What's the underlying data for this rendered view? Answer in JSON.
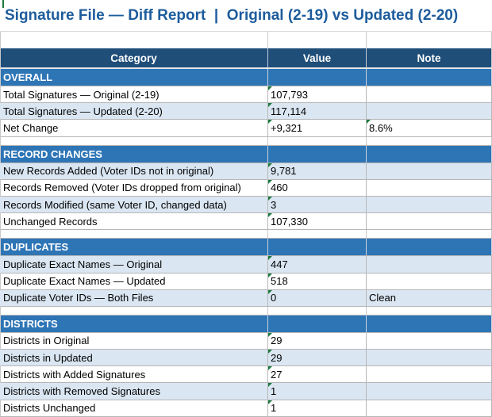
{
  "title": "Signature File — Diff Report  |  Original (2-19) vs Updated (2-20)",
  "columns": [
    "Category",
    "Value",
    "Note"
  ],
  "colors": {
    "title_text": "#1D5C9C",
    "header_bg": "#1F4E79",
    "section_bg": "#2E75B6",
    "band_bg": "#DAE6F2",
    "grid": "#B7B7B7",
    "flag_green": "#1B7A3E"
  },
  "sections": [
    {
      "name": "OVERALL",
      "rows": [
        {
          "category": "Total Signatures — Original (2-19)",
          "value": "107,793",
          "value_flag": true,
          "note": "",
          "note_flag": false
        },
        {
          "category": "Total Signatures — Updated (2-20)",
          "value": "117,114",
          "value_flag": true,
          "note": "",
          "note_flag": false
        },
        {
          "category": "Net Change",
          "value": "+9,321",
          "value_flag": true,
          "note": "8.6%",
          "note_flag": true
        }
      ]
    },
    {
      "name": "RECORD CHANGES",
      "rows": [
        {
          "category": "New Records Added (Voter IDs not in original)",
          "value": "9,781",
          "value_flag": true,
          "note": "",
          "note_flag": false
        },
        {
          "category": "Records Removed (Voter IDs dropped from original)",
          "value": "460",
          "value_flag": true,
          "note": "",
          "note_flag": false
        },
        {
          "category": "Records Modified (same Voter ID, changed data)",
          "value": "3",
          "value_flag": true,
          "note": "",
          "note_flag": false
        },
        {
          "category": "Unchanged Records",
          "value": "107,330",
          "value_flag": true,
          "note": "",
          "note_flag": false
        }
      ]
    },
    {
      "name": "DUPLICATES",
      "rows": [
        {
          "category": "Duplicate Exact Names — Original",
          "value": "447",
          "value_flag": true,
          "note": "",
          "note_flag": false
        },
        {
          "category": "Duplicate Exact Names — Updated",
          "value": "518",
          "value_flag": true,
          "note": "",
          "note_flag": false
        },
        {
          "category": "Duplicate Voter IDs — Both Files",
          "value": "0",
          "value_flag": true,
          "note": "Clean",
          "note_flag": false
        }
      ]
    },
    {
      "name": "DISTRICTS",
      "rows": [
        {
          "category": "Districts in Original",
          "value": "29",
          "value_flag": true,
          "note": "",
          "note_flag": false
        },
        {
          "category": "Districts in Updated",
          "value": "29",
          "value_flag": true,
          "note": "",
          "note_flag": false
        },
        {
          "category": "Districts with Added Signatures",
          "value": "27",
          "value_flag": true,
          "note": "",
          "note_flag": false
        },
        {
          "category": "Districts with Removed Signatures",
          "value": "1",
          "value_flag": true,
          "note": "",
          "note_flag": false
        },
        {
          "category": "Districts Unchanged",
          "value": "1",
          "value_flag": true,
          "note": "",
          "note_flag": false
        }
      ]
    }
  ]
}
